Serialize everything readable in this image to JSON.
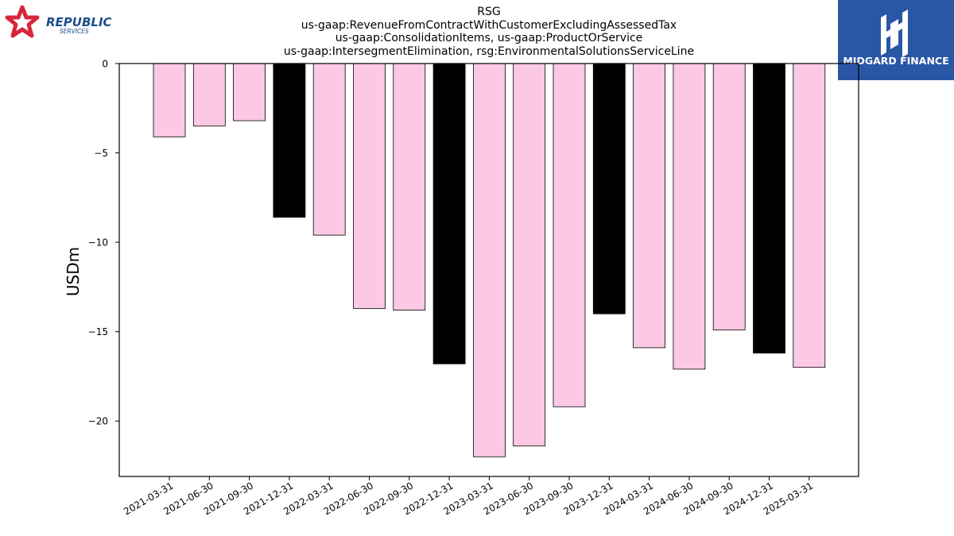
{
  "header": {
    "title_lines": [
      "RSG",
      "us-gaap:RevenueFromContractWithCustomerExcludingAssessedTax",
      "us-gaap:ConsolidationItems, us-gaap:ProductOrService",
      "us-gaap:IntersegmentElimination, rsg:EnvironmentalSolutionsServiceLine"
    ]
  },
  "logos": {
    "left": {
      "text_main": "REPUBLIC",
      "text_sub": "SERVICES",
      "icon": "republic-star-icon",
      "color_red": "#d6263b",
      "color_blue": "#1b4f8a"
    },
    "right": {
      "text": "MIDGARD FINANCE",
      "icon": "midgard-m-icon",
      "background": "#2a56a6"
    }
  },
  "chart_data": {
    "type": "bar",
    "title": "RSG",
    "ylabel": "USDm",
    "xlabel": "",
    "ylim": [
      -23.1,
      0
    ],
    "yticks": [
      0,
      -5,
      -10,
      -15,
      -20
    ],
    "ytick_labels": [
      "0",
      "−5",
      "−10",
      "−15",
      "−20"
    ],
    "categories": [
      "2021-03-31",
      "2021-06-30",
      "2021-09-30",
      "2021-12-31",
      "2022-03-31",
      "2022-06-30",
      "2022-09-30",
      "2022-12-31",
      "2023-03-31",
      "2023-06-30",
      "2023-09-30",
      "2023-12-31",
      "2024-03-31",
      "2024-06-30",
      "2024-09-30",
      "2024-12-31",
      "2025-03-31"
    ],
    "values": [
      -4.1,
      -3.5,
      -3.2,
      -8.6,
      -9.6,
      -13.7,
      -13.8,
      -16.8,
      -22.0,
      -21.4,
      -19.2,
      -14.0,
      -15.9,
      -17.1,
      -14.9,
      -16.2,
      -17.0
    ],
    "bar_colors": [
      "#fbc9e4",
      "#fbc9e4",
      "#fbc9e4",
      "#000000",
      "#fbc9e4",
      "#fbc9e4",
      "#fbc9e4",
      "#000000",
      "#fbc9e4",
      "#fbc9e4",
      "#fbc9e4",
      "#000000",
      "#fbc9e4",
      "#fbc9e4",
      "#fbc9e4",
      "#000000",
      "#fbc9e4"
    ],
    "grid": false,
    "legend": "none"
  }
}
